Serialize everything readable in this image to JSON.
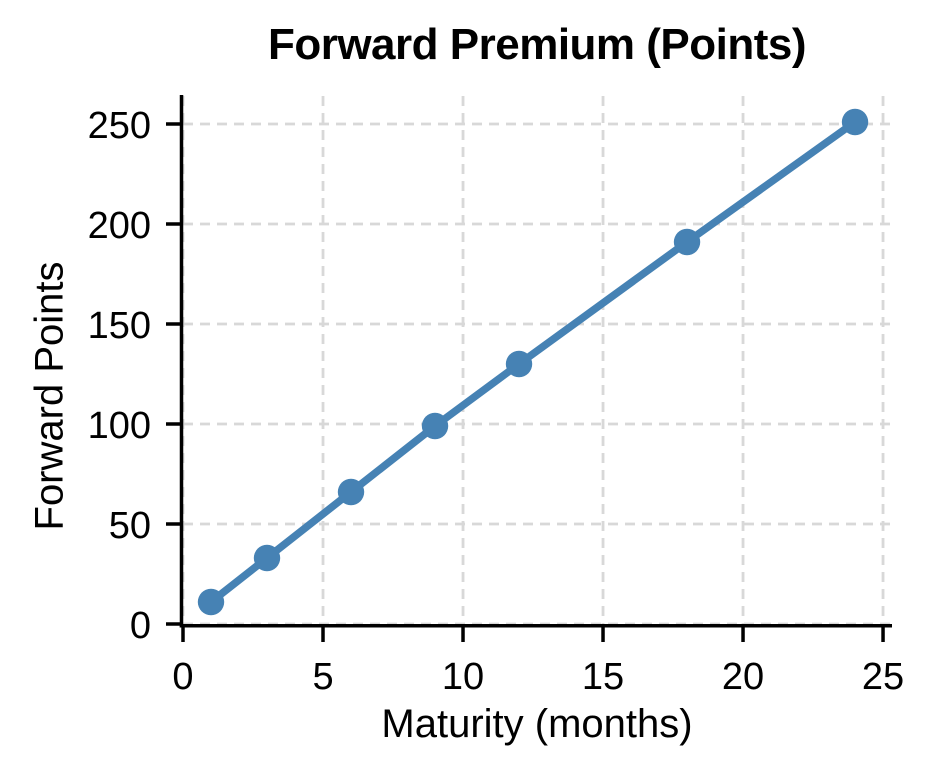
{
  "chart_data": {
    "type": "line",
    "title": "Forward Premium (Points)",
    "xlabel": "Maturity (months)",
    "ylabel": "Forward Points",
    "x": [
      1,
      3,
      6,
      9,
      12,
      18,
      24
    ],
    "y": [
      11,
      33,
      66,
      99,
      130,
      191,
      251
    ],
    "x_ticks": [
      0,
      5,
      10,
      15,
      20,
      25
    ],
    "y_ticks": [
      0,
      50,
      100,
      150,
      200,
      250
    ],
    "x_tick_labels": [
      "0",
      "5",
      "10",
      "15",
      "20",
      "25"
    ],
    "y_tick_labels": [
      "0",
      "50",
      "100",
      "150",
      "200",
      "250"
    ],
    "xlim": [
      0,
      25.32
    ],
    "ylim": [
      0,
      264
    ],
    "grid": true,
    "grid_style": "dashed",
    "legend_position": "none",
    "line_color": "#4682b4",
    "marker": "circle",
    "grid_color": "#d8d8d8",
    "axis_color": "#000000",
    "text_color": "#000000",
    "background_color": "#ffffff"
  }
}
